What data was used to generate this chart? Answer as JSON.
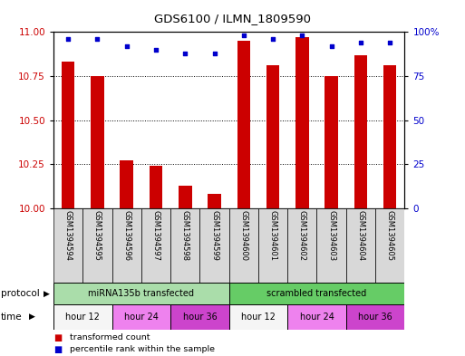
{
  "title": "GDS6100 / ILMN_1809590",
  "samples": [
    "GSM1394594",
    "GSM1394595",
    "GSM1394596",
    "GSM1394597",
    "GSM1394598",
    "GSM1394599",
    "GSM1394600",
    "GSM1394601",
    "GSM1394602",
    "GSM1394603",
    "GSM1394604",
    "GSM1394605"
  ],
  "bar_values": [
    10.83,
    10.75,
    10.27,
    10.24,
    10.13,
    10.08,
    10.95,
    10.81,
    10.97,
    10.75,
    10.87,
    10.81
  ],
  "percentile_values": [
    96,
    96,
    92,
    90,
    88,
    88,
    98,
    96,
    98,
    92,
    94,
    94
  ],
  "bar_color": "#cc0000",
  "dot_color": "#0000cc",
  "ylim_left": [
    10,
    11
  ],
  "ylim_right": [
    0,
    100
  ],
  "yticks_left": [
    10,
    10.25,
    10.5,
    10.75,
    11
  ],
  "yticks_right": [
    0,
    25,
    50,
    75,
    100
  ],
  "sample_box_color": "#d8d8d8",
  "protocol_groups": [
    {
      "label": "miRNA135b transfected",
      "start": 0,
      "end": 6,
      "color": "#aaddaa"
    },
    {
      "label": "scrambled transfected",
      "start": 6,
      "end": 12,
      "color": "#66cc66"
    }
  ],
  "time_groups": [
    {
      "label": "hour 12",
      "start": 0,
      "end": 2,
      "color": "#f5f5f5"
    },
    {
      "label": "hour 24",
      "start": 2,
      "end": 4,
      "color": "#ee82ee"
    },
    {
      "label": "hour 36",
      "start": 4,
      "end": 6,
      "color": "#cc44cc"
    },
    {
      "label": "hour 12",
      "start": 6,
      "end": 8,
      "color": "#f5f5f5"
    },
    {
      "label": "hour 24",
      "start": 8,
      "end": 10,
      "color": "#ee82ee"
    },
    {
      "label": "hour 36",
      "start": 10,
      "end": 12,
      "color": "#cc44cc"
    }
  ],
  "legend_items": [
    {
      "label": "transformed count",
      "color": "#cc0000",
      "marker": "s"
    },
    {
      "label": "percentile rank within the sample",
      "color": "#0000cc",
      "marker": "s"
    }
  ]
}
